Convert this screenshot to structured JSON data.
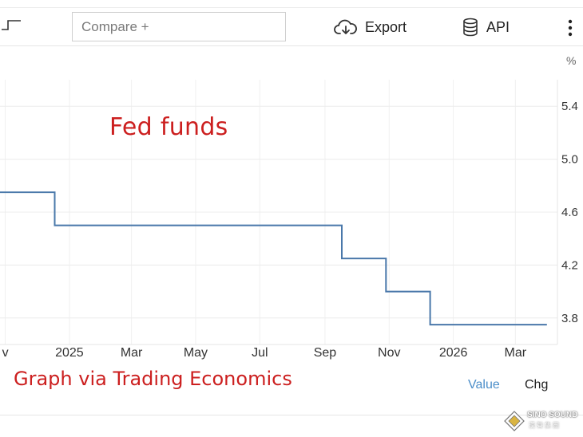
{
  "toolbar": {
    "compare_placeholder": "Compare +",
    "export_label": "Export",
    "api_label": "API",
    "export_icon": "cloud-download-icon",
    "api_icon": "database-icon",
    "more_icon": "vertical-dots-icon",
    "chart_type_icon": "step-line-icon"
  },
  "annotations": {
    "title": "Fed funds",
    "credit": "Graph via Trading Economics"
  },
  "tabs": {
    "value": "Value",
    "chg": "Chg"
  },
  "watermark": {
    "name": "SINO SOUND",
    "sub": "漢聲集團"
  },
  "chart_data": {
    "type": "line",
    "step": true,
    "title": "",
    "xlabel": "",
    "ylabel": "",
    "unit": "%",
    "x_tick_labels": [
      "v",
      "2025",
      "Mar",
      "May",
      "Jul",
      "Sep",
      "Nov",
      "2026",
      "Mar"
    ],
    "y_tick_labels": [
      "5.4",
      "5.0",
      "4.6",
      "4.2",
      "3.8"
    ],
    "y_ticks": [
      5.4,
      5.0,
      4.6,
      4.2,
      3.8
    ],
    "ylim": [
      3.6,
      5.6
    ],
    "xlim": [
      "2024-10-27",
      "2026-04-10"
    ],
    "x_ticks": [
      "2024-11-01",
      "2025-01-01",
      "2025-03-01",
      "2025-05-01",
      "2025-07-01",
      "2025-09-01",
      "2025-11-01",
      "2026-01-01",
      "2026-03-01"
    ],
    "grid": true,
    "series": [
      {
        "color": "#4a78aa",
        "points": [
          {
            "x": "2024-10-27",
            "y": 4.75
          },
          {
            "x": "2024-12-18",
            "y": 4.75
          },
          {
            "x": "2024-12-18",
            "y": 4.5
          },
          {
            "x": "2025-09-17",
            "y": 4.5
          },
          {
            "x": "2025-09-17",
            "y": 4.25
          },
          {
            "x": "2025-10-29",
            "y": 4.25
          },
          {
            "x": "2025-10-29",
            "y": 4.0
          },
          {
            "x": "2025-12-10",
            "y": 4.0
          },
          {
            "x": "2025-12-10",
            "y": 3.75
          },
          {
            "x": "2026-03-31",
            "y": 3.75
          }
        ]
      }
    ]
  }
}
